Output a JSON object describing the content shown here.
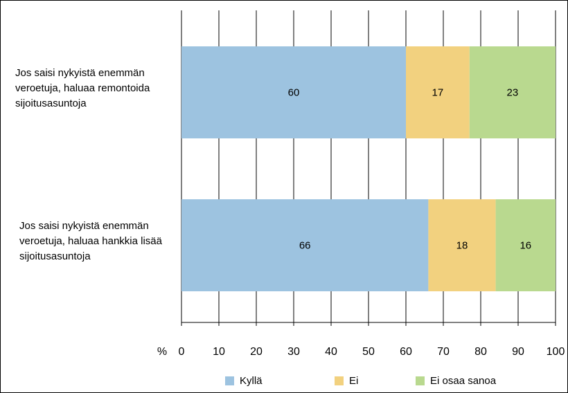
{
  "chart_data": {
    "type": "bar",
    "orientation": "horizontal",
    "stacked": true,
    "categories": [
      "Jos saisi nykyistä enemmän veroetuja, haluaa remontoida sijoitusasuntoja",
      "Jos saisi nykyistä enemmän veroetuja,  haluaa hankkia lisää sijoitusasuntoja"
    ],
    "series": [
      {
        "name": "Kyllä",
        "values": [
          60,
          66
        ],
        "color": "#9DC3E0"
      },
      {
        "name": "Ei",
        "values": [
          17,
          18
        ],
        "color": "#F2D17F"
      },
      {
        "name": "Ei osaa sanoa",
        "values": [
          23,
          16
        ],
        "color": "#B9D98F"
      }
    ],
    "x_unit_label": "%",
    "xlim": [
      0,
      100
    ],
    "x_ticks": [
      "0",
      "10",
      "20",
      "30",
      "40",
      "50",
      "60",
      "70",
      "80",
      "90",
      "100"
    ],
    "grid": true,
    "legend_position": "bottom",
    "data_labels": true
  }
}
